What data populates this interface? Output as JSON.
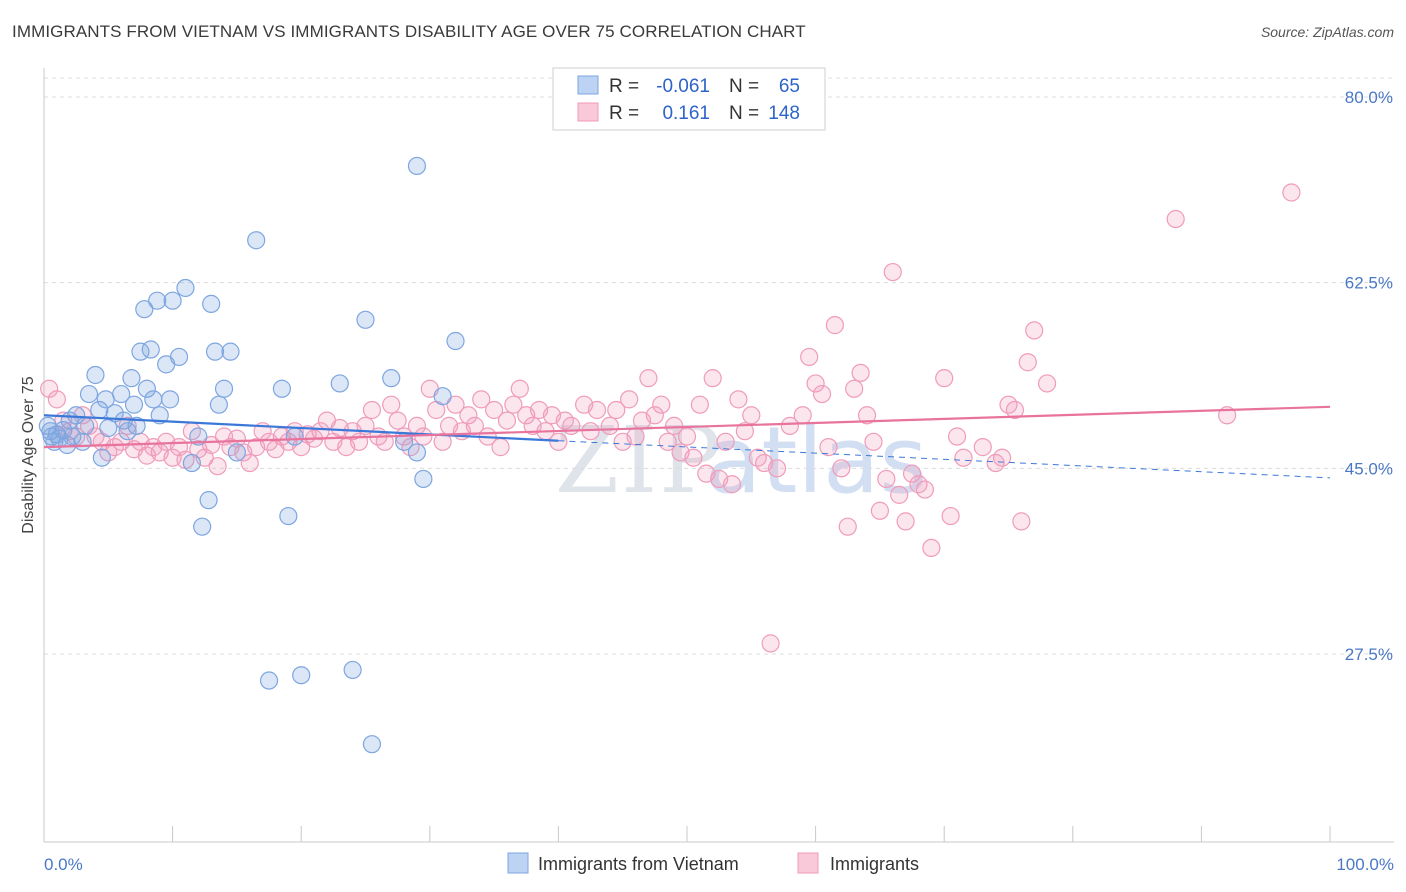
{
  "title": "IMMIGRANTS FROM VIETNAM VS IMMIGRANTS DISABILITY AGE OVER 75 CORRELATION CHART",
  "source": "Source: ZipAtlas.com",
  "watermark": {
    "zip": "ZIP",
    "atlas": "atlas"
  },
  "chart_data": {
    "type": "scatter",
    "title": "IMMIGRANTS FROM VIETNAM VS IMMIGRANTS DISABILITY AGE OVER 75 CORRELATION CHART",
    "xlabel": "",
    "ylabel": "Disability Age Over 75",
    "xlim": [
      0,
      100
    ],
    "ylim": [
      10,
      85
    ],
    "x_tick_labels": [
      "0.0%",
      "100.0%"
    ],
    "y_ticks": [
      27.5,
      45.0,
      62.5,
      80.0
    ],
    "y_tick_labels": [
      "27.5%",
      "45.0%",
      "62.5%",
      "80.0%"
    ],
    "grid": "horizontal dashed",
    "legend_position": "top-center",
    "legend": [
      {
        "r_label": "R =",
        "r_value": "-0.061",
        "n_label": "N =",
        "n_value": "65"
      },
      {
        "r_label": "R =",
        "r_value": "0.161",
        "n_label": "N =",
        "n_value": "148"
      }
    ],
    "series": [
      {
        "name": "Immigrants from Vietnam",
        "color": "#7ea6e0",
        "line_color": "#3b78d8",
        "trend": {
          "x": [
            0,
            40
          ],
          "y": [
            50.0,
            47.6
          ]
        },
        "trend_dashed": {
          "x": [
            40,
            100
          ],
          "y": [
            47.6,
            44.1
          ]
        },
        "points": [
          [
            0.3,
            49.0
          ],
          [
            0.5,
            48.5
          ],
          [
            0.6,
            48.0
          ],
          [
            0.8,
            47.5
          ],
          [
            1.0,
            48.2
          ],
          [
            1.2,
            47.8
          ],
          [
            1.5,
            48.6
          ],
          [
            1.8,
            47.2
          ],
          [
            2.0,
            49.5
          ],
          [
            2.2,
            48.0
          ],
          [
            2.5,
            50.0
          ],
          [
            3.0,
            47.5
          ],
          [
            3.2,
            49.0
          ],
          [
            3.5,
            52.0
          ],
          [
            4.0,
            53.8
          ],
          [
            4.3,
            50.5
          ],
          [
            4.5,
            46.0
          ],
          [
            4.8,
            51.5
          ],
          [
            5.0,
            48.8
          ],
          [
            5.5,
            50.2
          ],
          [
            6.0,
            52.0
          ],
          [
            6.2,
            49.5
          ],
          [
            6.5,
            48.5
          ],
          [
            6.8,
            53.5
          ],
          [
            7.0,
            51.0
          ],
          [
            7.2,
            49.0
          ],
          [
            7.5,
            56.0
          ],
          [
            7.8,
            60.0
          ],
          [
            8.0,
            52.5
          ],
          [
            8.3,
            56.2
          ],
          [
            8.5,
            51.5
          ],
          [
            8.8,
            60.8
          ],
          [
            9.0,
            50.0
          ],
          [
            9.5,
            54.8
          ],
          [
            9.8,
            51.5
          ],
          [
            10.0,
            60.8
          ],
          [
            10.5,
            55.5
          ],
          [
            11.0,
            62.0
          ],
          [
            11.5,
            45.5
          ],
          [
            12.0,
            48.0
          ],
          [
            12.3,
            39.5
          ],
          [
            12.8,
            42.0
          ],
          [
            13.0,
            60.5
          ],
          [
            13.3,
            56.0
          ],
          [
            13.6,
            51.0
          ],
          [
            14.0,
            52.5
          ],
          [
            14.5,
            56.0
          ],
          [
            15.0,
            46.5
          ],
          [
            16.5,
            66.5
          ],
          [
            17.5,
            25.0
          ],
          [
            18.5,
            52.5
          ],
          [
            19.0,
            40.5
          ],
          [
            19.5,
            48.0
          ],
          [
            20.0,
            25.5
          ],
          [
            23.0,
            53.0
          ],
          [
            24.0,
            26.0
          ],
          [
            25.0,
            59.0
          ],
          [
            25.5,
            19.0
          ],
          [
            27.0,
            53.5
          ],
          [
            28.0,
            47.5
          ],
          [
            29.0,
            46.5
          ],
          [
            29.5,
            44.0
          ],
          [
            31.0,
            51.8
          ],
          [
            32.0,
            57.0
          ],
          [
            29.0,
            73.5
          ]
        ]
      },
      {
        "name": "Immigrants",
        "color": "#f09bba",
        "line_color": "#e8739c",
        "trend": {
          "x": [
            0,
            100
          ],
          "y": [
            47.0,
            50.8
          ]
        },
        "points": [
          [
            0.4,
            52.5
          ],
          [
            1.0,
            51.5
          ],
          [
            1.5,
            49.5
          ],
          [
            2.0,
            48.5
          ],
          [
            2.5,
            48.0
          ],
          [
            3.0,
            50.0
          ],
          [
            3.5,
            49.0
          ],
          [
            4.0,
            48.0
          ],
          [
            4.5,
            47.5
          ],
          [
            5.0,
            46.5
          ],
          [
            5.5,
            47.0
          ],
          [
            6.0,
            47.5
          ],
          [
            6.5,
            49.0
          ],
          [
            7.0,
            46.8
          ],
          [
            7.5,
            47.5
          ],
          [
            8.0,
            46.2
          ],
          [
            8.5,
            47.0
          ],
          [
            9.0,
            46.5
          ],
          [
            9.5,
            47.5
          ],
          [
            10.0,
            46.0
          ],
          [
            10.5,
            47.0
          ],
          [
            11.0,
            45.8
          ],
          [
            11.5,
            48.5
          ],
          [
            12.0,
            46.8
          ],
          [
            12.5,
            46.0
          ],
          [
            13.0,
            47.2
          ],
          [
            13.5,
            45.2
          ],
          [
            14.0,
            48.0
          ],
          [
            14.5,
            47.0
          ],
          [
            15.0,
            47.8
          ],
          [
            15.5,
            46.5
          ],
          [
            16.0,
            45.5
          ],
          [
            16.5,
            47.0
          ],
          [
            17.0,
            48.5
          ],
          [
            17.5,
            47.5
          ],
          [
            18.0,
            46.8
          ],
          [
            18.5,
            48.0
          ],
          [
            19.0,
            47.5
          ],
          [
            19.5,
            48.5
          ],
          [
            20.0,
            47.0
          ],
          [
            20.5,
            48.2
          ],
          [
            21.0,
            47.8
          ],
          [
            21.5,
            48.5
          ],
          [
            22.0,
            49.5
          ],
          [
            22.5,
            47.5
          ],
          [
            23.0,
            48.8
          ],
          [
            23.5,
            47.0
          ],
          [
            24.0,
            48.5
          ],
          [
            24.5,
            47.5
          ],
          [
            25.0,
            49.0
          ],
          [
            25.5,
            50.5
          ],
          [
            26.0,
            48.0
          ],
          [
            26.5,
            47.5
          ],
          [
            27.0,
            51.0
          ],
          [
            27.5,
            49.5
          ],
          [
            28.0,
            48.0
          ],
          [
            28.5,
            47.0
          ],
          [
            29.0,
            49.0
          ],
          [
            29.5,
            48.0
          ],
          [
            30.0,
            52.5
          ],
          [
            30.5,
            50.5
          ],
          [
            31.0,
            47.5
          ],
          [
            31.5,
            49.0
          ],
          [
            32.0,
            51.0
          ],
          [
            32.5,
            48.5
          ],
          [
            33.0,
            50.0
          ],
          [
            33.5,
            49.0
          ],
          [
            34.0,
            51.5
          ],
          [
            34.5,
            48.0
          ],
          [
            35.0,
            50.5
          ],
          [
            35.5,
            47.0
          ],
          [
            36.0,
            49.5
          ],
          [
            36.5,
            51.0
          ],
          [
            37.0,
            52.5
          ],
          [
            37.5,
            50.0
          ],
          [
            38.0,
            49.0
          ],
          [
            38.5,
            50.5
          ],
          [
            39.0,
            48.5
          ],
          [
            39.5,
            50.0
          ],
          [
            40.0,
            47.5
          ],
          [
            40.5,
            49.5
          ],
          [
            41.0,
            49.0
          ],
          [
            42.0,
            51.0
          ],
          [
            42.5,
            48.5
          ],
          [
            43.0,
            50.5
          ],
          [
            44.0,
            49.0
          ],
          [
            44.5,
            50.5
          ],
          [
            45.0,
            47.5
          ],
          [
            45.5,
            51.5
          ],
          [
            46.0,
            48.0
          ],
          [
            46.5,
            49.5
          ],
          [
            47.0,
            53.5
          ],
          [
            47.5,
            50.0
          ],
          [
            48.0,
            51.0
          ],
          [
            48.5,
            47.5
          ],
          [
            49.0,
            49.0
          ],
          [
            49.5,
            46.5
          ],
          [
            50.0,
            48.0
          ],
          [
            50.5,
            46.0
          ],
          [
            51.0,
            51.0
          ],
          [
            51.5,
            44.5
          ],
          [
            52.0,
            53.5
          ],
          [
            52.5,
            44.0
          ],
          [
            53.0,
            47.5
          ],
          [
            53.5,
            43.5
          ],
          [
            54.0,
            51.5
          ],
          [
            54.5,
            48.5
          ],
          [
            55.0,
            50.0
          ],
          [
            55.5,
            46.0
          ],
          [
            56.0,
            45.5
          ],
          [
            56.5,
            28.5
          ],
          [
            57.0,
            45.0
          ],
          [
            58.0,
            49.0
          ],
          [
            59.0,
            50.0
          ],
          [
            59.5,
            55.5
          ],
          [
            60.0,
            53.0
          ],
          [
            60.5,
            52.0
          ],
          [
            61.0,
            47.0
          ],
          [
            61.5,
            58.5
          ],
          [
            62.0,
            45.0
          ],
          [
            62.5,
            39.5
          ],
          [
            63.0,
            52.5
          ],
          [
            63.5,
            54.0
          ],
          [
            64.0,
            50.0
          ],
          [
            64.5,
            47.5
          ],
          [
            65.0,
            41.0
          ],
          [
            65.5,
            44.0
          ],
          [
            66.0,
            63.5
          ],
          [
            66.5,
            42.5
          ],
          [
            67.0,
            40.0
          ],
          [
            67.5,
            44.5
          ],
          [
            68.0,
            43.5
          ],
          [
            68.5,
            43.0
          ],
          [
            69.0,
            37.5
          ],
          [
            70.0,
            53.5
          ],
          [
            70.5,
            40.5
          ],
          [
            71.0,
            48.0
          ],
          [
            71.5,
            46.0
          ],
          [
            73.0,
            47.0
          ],
          [
            74.0,
            45.5
          ],
          [
            75.0,
            51.0
          ],
          [
            75.5,
            50.5
          ],
          [
            76.0,
            40.0
          ],
          [
            76.5,
            55.0
          ],
          [
            77.0,
            58.0
          ],
          [
            78.0,
            53.0
          ],
          [
            88.0,
            68.5
          ],
          [
            92.0,
            50.0
          ],
          [
            97.0,
            71.0
          ],
          [
            74.5,
            46.0
          ]
        ]
      }
    ]
  },
  "legend_bottom": [
    {
      "label": "Immigrants from Vietnam",
      "color": "#7ea6e0"
    },
    {
      "label": "Immigrants",
      "color": "#f09bba"
    }
  ]
}
